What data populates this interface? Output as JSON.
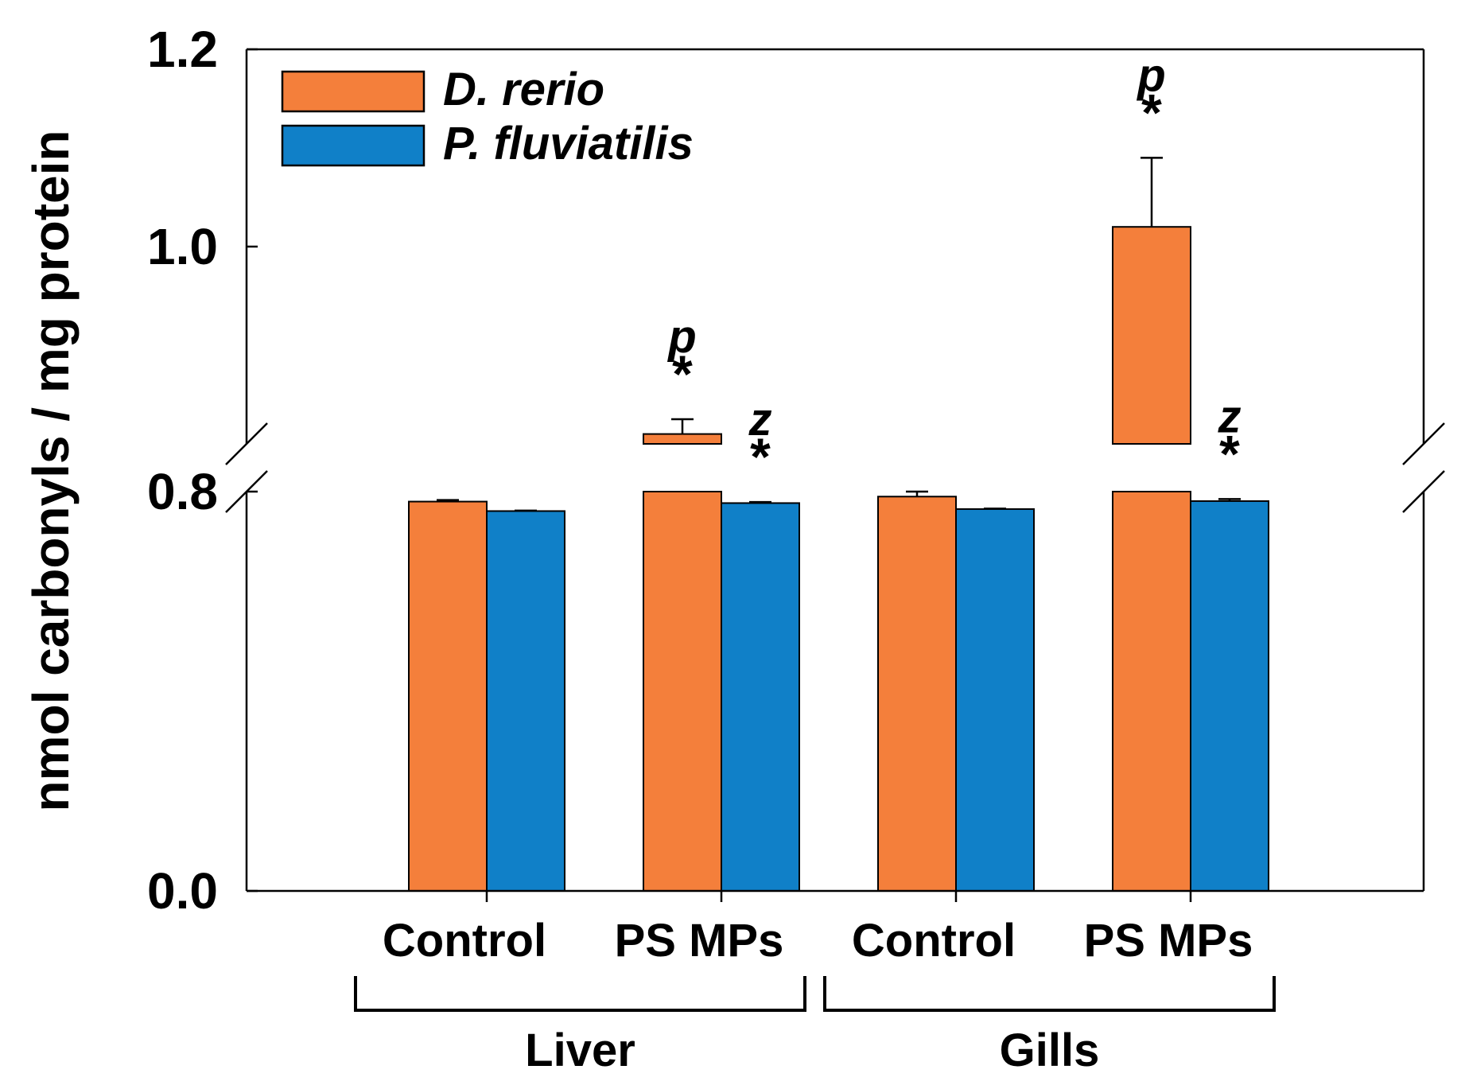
{
  "chart_data": {
    "type": "bar",
    "title": "",
    "ylabel": "nmol carbonyls / mg protein",
    "xlabel": "",
    "ylim": [
      0.0,
      1.2
    ],
    "y_axis_break": [
      0.0,
      0.8
    ],
    "y_ticks": [
      {
        "value": 0.0,
        "label": "0.0"
      },
      {
        "value": 0.8,
        "label": "0.8"
      },
      {
        "value": 1.0,
        "label": "1.0"
      },
      {
        "value": 1.2,
        "label": "1.2"
      }
    ],
    "categories": [
      "Control",
      "PS MPs",
      "Control",
      "PS MPs"
    ],
    "groups": [
      {
        "label": "Liver",
        "categories": [
          0,
          1
        ]
      },
      {
        "label": "Gills",
        "categories": [
          2,
          3
        ]
      }
    ],
    "legend_position": "top-left",
    "series": [
      {
        "name": "D. rerio",
        "color": "#F47F3B",
        "values": [
          0.78,
          0.81,
          0.79,
          1.02
        ],
        "errors": [
          0.003,
          0.015,
          0.01,
          0.07
        ],
        "annotations": [
          "",
          "p *",
          "",
          "p *"
        ]
      },
      {
        "name": "P. fluviatilis",
        "color": "#1080C8",
        "values": [
          0.761,
          0.777,
          0.765,
          0.781
        ],
        "errors": [
          0.001,
          0.002,
          0.001,
          0.004
        ],
        "annotations": [
          "",
          "z *",
          "",
          "z *"
        ]
      }
    ]
  }
}
